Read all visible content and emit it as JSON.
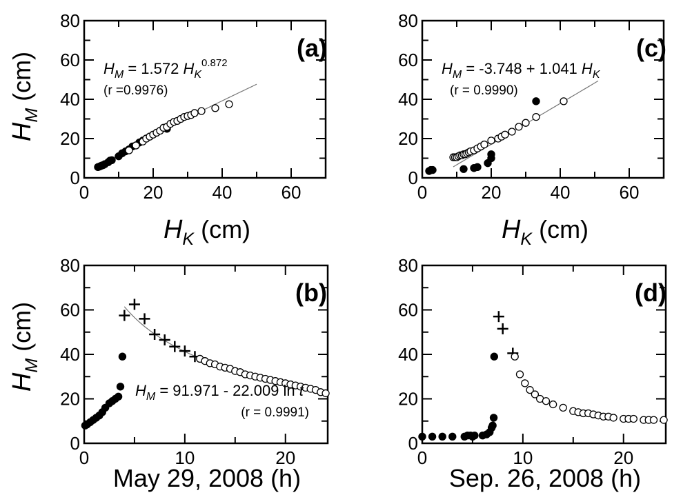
{
  "figure": {
    "y_axis_title": {
      "main": "H",
      "sub": "M",
      "unit": " (cm)"
    },
    "x_axis_title_top": {
      "main": "H",
      "sub": "K",
      "unit": " (cm)"
    }
  },
  "chart_data": [
    {
      "id": "a",
      "type": "scatter",
      "panel_label": "(a)",
      "xlim": [
        0,
        70
      ],
      "ylim": [
        0,
        80
      ],
      "x_ticks": [
        "0",
        "20",
        "40",
        "60"
      ],
      "y_ticks": [
        "0",
        "20",
        "40",
        "60",
        "80"
      ],
      "xlabel": "H_K (cm)",
      "ylabel": "H_M (cm)",
      "equation": {
        "lhs": "H",
        "lhs_sub": "M",
        "mid": " = 1.572 ",
        "var": "H",
        "var_sub": "K",
        "exp": "0.872",
        "tail": ""
      },
      "correlation": "(r =0.9976)",
      "fit_line": {
        "kind": "power",
        "a": 1.572,
        "b": 0.872,
        "x_range": [
          4,
          50
        ]
      },
      "series": [
        {
          "marker": "filled",
          "points": [
            [
              4,
              5.5
            ],
            [
              4.5,
              5.8
            ],
            [
              5,
              6.2
            ],
            [
              5.5,
              6.5
            ],
            [
              6,
              7
            ],
            [
              7,
              8
            ],
            [
              7.5,
              8.8
            ],
            [
              8,
              9
            ],
            [
              10,
              11
            ],
            [
              11,
              12.5
            ],
            [
              12,
              13.5
            ],
            [
              13,
              14.5
            ],
            [
              14,
              16
            ],
            [
              15,
              16.5
            ],
            [
              16,
              18
            ],
            [
              17,
              19
            ],
            [
              18,
              20
            ],
            [
              19,
              21
            ],
            [
              24,
              25
            ]
          ]
        },
        {
          "marker": "open",
          "points": [
            [
              13,
              14
            ],
            [
              15,
              16.5
            ],
            [
              17,
              18.5
            ],
            [
              18,
              20
            ],
            [
              19,
              21
            ],
            [
              20,
              22
            ],
            [
              21,
              23
            ],
            [
              22,
              24
            ],
            [
              23,
              25.5
            ],
            [
              24,
              26
            ],
            [
              25,
              27.5
            ],
            [
              26,
              28.5
            ],
            [
              27,
              29
            ],
            [
              28,
              30
            ],
            [
              29,
              31
            ],
            [
              30,
              31.5
            ],
            [
              31,
              32
            ],
            [
              32,
              33
            ],
            [
              34,
              34
            ],
            [
              38,
              35.5
            ],
            [
              42,
              37.5
            ]
          ]
        }
      ]
    },
    {
      "id": "c",
      "type": "scatter",
      "panel_label": "(c)",
      "xlim": [
        0,
        70
      ],
      "ylim": [
        0,
        80
      ],
      "x_ticks": [
        "0",
        "20",
        "40",
        "60"
      ],
      "y_ticks": [
        "0",
        "20",
        "40",
        "60",
        "80"
      ],
      "xlabel": "H_K (cm)",
      "ylabel": "H_M (cm)",
      "equation": {
        "lhs": "H",
        "lhs_sub": "M",
        "mid": " = -3.748 + 1.041 ",
        "var": "H",
        "var_sub": "K",
        "exp": "",
        "tail": ""
      },
      "correlation": "(r = 0.9990)",
      "fit_line": {
        "kind": "linear",
        "a": -3.748,
        "b": 1.041,
        "x_range": [
          9,
          51
        ]
      },
      "series": [
        {
          "marker": "filled",
          "points": [
            [
              2,
              3.5
            ],
            [
              2.5,
              4
            ],
            [
              3,
              4
            ],
            [
              12,
              4.5
            ],
            [
              15,
              5
            ],
            [
              16,
              5.5
            ],
            [
              19,
              7.5
            ],
            [
              20,
              10
            ],
            [
              20,
              12
            ],
            [
              33,
              39
            ]
          ]
        },
        {
          "marker": "open",
          "points": [
            [
              9,
              10.5
            ],
            [
              9.5,
              10.5
            ],
            [
              10,
              10.5
            ],
            [
              10.5,
              11
            ],
            [
              11,
              11.5
            ],
            [
              11.5,
              11.5
            ],
            [
              12,
              12
            ],
            [
              12.5,
              12
            ],
            [
              13,
              12.5
            ],
            [
              13.5,
              13
            ],
            [
              14,
              13.5
            ],
            [
              15,
              14
            ],
            [
              16,
              15
            ],
            [
              17,
              16
            ],
            [
              18,
              17
            ],
            [
              20,
              19
            ],
            [
              22,
              20
            ],
            [
              23,
              21
            ],
            [
              24,
              22
            ],
            [
              26,
              23.5
            ],
            [
              28,
              26
            ],
            [
              30,
              28
            ],
            [
              33,
              31
            ],
            [
              41,
              39
            ]
          ]
        }
      ]
    },
    {
      "id": "b",
      "type": "scatter",
      "panel_label": "(b)",
      "xlim": [
        0,
        24.2
      ],
      "ylim": [
        0,
        80
      ],
      "x_ticks": [
        "0",
        "10",
        "20"
      ],
      "y_ticks": [
        "0",
        "20",
        "40",
        "60",
        "80"
      ],
      "xlabel": "May 29, 2008 (h)",
      "ylabel": "H_M (cm)",
      "equation": {
        "lhs": "H",
        "lhs_sub": "M",
        "mid": " = 91.971 - 22.009 ln ",
        "var": "t",
        "var_sub": "",
        "exp": "",
        "tail": ""
      },
      "correlation": "(r = 0.9991)",
      "fit_line": {
        "kind": "log",
        "a": 91.971,
        "b": -22.009,
        "x_range": [
          4,
          24
        ]
      },
      "series": [
        {
          "marker": "filled",
          "points": [
            [
              0.1,
              8
            ],
            [
              0.3,
              8.5
            ],
            [
              0.6,
              9.5
            ],
            [
              0.9,
              10.5
            ],
            [
              1.2,
              11.5
            ],
            [
              1.5,
              12.5
            ],
            [
              1.8,
              14
            ],
            [
              2.1,
              16
            ],
            [
              2.5,
              18
            ],
            [
              2.8,
              19
            ],
            [
              3.1,
              20
            ],
            [
              3.4,
              21
            ],
            [
              3.6,
              25.5
            ],
            [
              3.8,
              39
            ]
          ]
        },
        {
          "marker": "plus",
          "points": [
            [
              4,
              57.5
            ],
            [
              5,
              62.5
            ],
            [
              6,
              56
            ],
            [
              7,
              49
            ],
            [
              8,
              46.5
            ],
            [
              9,
              43.5
            ],
            [
              10,
              41.5
            ],
            [
              11,
              39
            ]
          ]
        },
        {
          "marker": "open",
          "points": [
            [
              11.5,
              38
            ],
            [
              12,
              37
            ],
            [
              12.5,
              36
            ],
            [
              13,
              35.5
            ],
            [
              13.5,
              34.5
            ],
            [
              14,
              34
            ],
            [
              14.5,
              33.5
            ],
            [
              15,
              32.5
            ],
            [
              15.5,
              32
            ],
            [
              16,
              31
            ],
            [
              16.5,
              30.5
            ],
            [
              17,
              30
            ],
            [
              17.5,
              29.5
            ],
            [
              18,
              29
            ],
            [
              18.5,
              28.5
            ],
            [
              19,
              28
            ],
            [
              19.5,
              27.5
            ],
            [
              20,
              27
            ],
            [
              20.5,
              26.5
            ],
            [
              21,
              26
            ],
            [
              21.5,
              25.5
            ],
            [
              22,
              25
            ],
            [
              22.5,
              24.5
            ],
            [
              23,
              24
            ],
            [
              23.5,
              23
            ],
            [
              24,
              22.5
            ]
          ]
        }
      ]
    },
    {
      "id": "d",
      "type": "scatter",
      "panel_label": "(d)",
      "xlim": [
        0,
        24.2
      ],
      "ylim": [
        0,
        80
      ],
      "x_ticks": [
        "0",
        "10",
        "20"
      ],
      "y_ticks": [
        "0",
        "20",
        "40",
        "60",
        "80"
      ],
      "xlabel": "Sep. 26, 2008 (h)",
      "ylabel": "H_M (cm)",
      "equation": null,
      "correlation": "",
      "fit_line": null,
      "series": [
        {
          "marker": "filled",
          "points": [
            [
              0,
              3
            ],
            [
              1,
              3
            ],
            [
              2,
              3
            ],
            [
              3,
              3
            ],
            [
              4.2,
              3
            ],
            [
              4.5,
              3.5
            ],
            [
              4.8,
              3.5
            ],
            [
              5,
              3
            ],
            [
              5.2,
              3.5
            ],
            [
              6,
              3.5
            ],
            [
              6.4,
              4
            ],
            [
              6.7,
              5
            ],
            [
              6.9,
              7
            ],
            [
              7,
              8
            ],
            [
              7.1,
              11.5
            ],
            [
              7.15,
              39
            ]
          ]
        },
        {
          "marker": "plus",
          "points": [
            [
              7.6,
              57
            ],
            [
              8,
              51.5
            ],
            [
              9,
              40.5
            ]
          ]
        },
        {
          "marker": "open",
          "points": [
            [
              9.2,
              39
            ],
            [
              9.7,
              31
            ],
            [
              10.2,
              27
            ],
            [
              10.7,
              24
            ],
            [
              11.2,
              22
            ],
            [
              11.7,
              20
            ],
            [
              12.3,
              19
            ],
            [
              13,
              17.5
            ],
            [
              14,
              16
            ],
            [
              15,
              14.5
            ],
            [
              15.5,
              14
            ],
            [
              16,
              13.5
            ],
            [
              16.5,
              13.5
            ],
            [
              17,
              13
            ],
            [
              17.5,
              12.5
            ],
            [
              18,
              12
            ],
            [
              18.5,
              12
            ],
            [
              19,
              11.5
            ],
            [
              20,
              11
            ],
            [
              20.5,
              11
            ],
            [
              21,
              11
            ],
            [
              22,
              10.5
            ],
            [
              22.5,
              10.5
            ],
            [
              23,
              10.5
            ],
            [
              24,
              10.5
            ]
          ]
        }
      ]
    }
  ]
}
